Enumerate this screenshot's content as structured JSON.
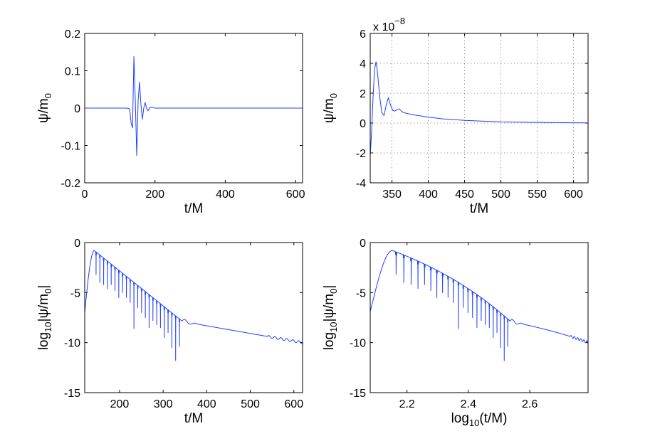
{
  "chart_data": [
    {
      "type": "line",
      "panel": "top-left",
      "x": [
        0,
        100,
        120,
        128,
        132,
        136,
        140,
        144,
        148,
        152,
        156,
        160,
        164,
        168,
        172,
        176,
        180,
        184,
        190,
        200,
        220,
        620
      ],
      "y": [
        0,
        0,
        0,
        -0.002,
        -0.04,
        -0.053,
        0.138,
        0.02,
        -0.127,
        0.02,
        0.07,
        0.01,
        -0.03,
        0.0,
        0.015,
        0.0,
        -0.007,
        0.0,
        0.003,
        0.0,
        0.0,
        0.0
      ],
      "xlim": [
        0,
        620
      ],
      "ylim": [
        -0.2,
        0.2
      ],
      "xticks": [
        "0",
        "200",
        "400",
        "600"
      ],
      "xtick_values": [
        0,
        200,
        400,
        600
      ],
      "yticks": [
        "0.2",
        "0.1",
        "0",
        "-0.1",
        "-0.2"
      ],
      "ytick_values": [
        0.2,
        0.1,
        0,
        -0.1,
        -0.2
      ],
      "xlabel": "t/M",
      "ylabel_main": "ψ/m",
      "ylabel_sub": "0",
      "grid": false
    },
    {
      "type": "line",
      "panel": "top-right",
      "x": [
        320,
        322,
        324,
        326,
        328,
        330,
        333,
        336,
        339,
        342,
        345,
        348,
        351,
        354,
        357,
        360,
        363,
        366,
        370,
        375,
        380,
        400,
        420,
        450,
        500,
        550,
        600,
        620
      ],
      "y": [
        -2.2,
        -0.5,
        1.8,
        3.6,
        4.1,
        3.4,
        1.8,
        0.7,
        0.5,
        1.2,
        1.7,
        1.2,
        0.85,
        0.8,
        0.9,
        0.95,
        0.8,
        0.7,
        0.65,
        0.6,
        0.55,
        0.4,
        0.28,
        0.18,
        0.08,
        0.04,
        0.02,
        0.01
      ],
      "xlim": [
        320,
        620
      ],
      "ylim": [
        -4,
        6
      ],
      "xticks": [
        "350",
        "400",
        "450",
        "500",
        "550",
        "600"
      ],
      "xtick_values": [
        350,
        400,
        450,
        500,
        550,
        600
      ],
      "yticks": [
        "6",
        "4",
        "2",
        "0",
        "-2",
        "-4"
      ],
      "ytick_values": [
        6,
        4,
        2,
        0,
        -2,
        -4
      ],
      "multiplier_base": "x 10",
      "multiplier_exp": "−8",
      "xlabel": "t/M",
      "ylabel_main": "ψ/m",
      "ylabel_sub": "0",
      "grid": true
    },
    {
      "type": "line",
      "panel": "bottom-left",
      "xlim": [
        120,
        620
      ],
      "ylim": [
        -15,
        0
      ],
      "envelope_ringdown": {
        "t_start": 120,
        "t_peak": 142,
        "t_end": 345,
        "peak_log": -0.8,
        "end_log": -7.9,
        "cycle": 8.7,
        "first_dip_t": 146
      },
      "dips": [
        -3.2,
        -4.0,
        -4.2,
        -4.6,
        -4.2,
        -4.8,
        -5.5,
        -5.0,
        -5.5,
        -6.0,
        -8.6,
        -6.5,
        -7.0,
        -7.5,
        -8.5,
        -7.8,
        -8.2,
        -8.5,
        -9.5,
        -9.0,
        -10.5,
        -11.8,
        -10.4
      ],
      "tail": {
        "t_start": 345,
        "t_end": 620,
        "log_start": -7.9,
        "log_end": -10.0
      },
      "xticks": [
        "200",
        "300",
        "400",
        "500",
        "600"
      ],
      "xtick_values": [
        200,
        300,
        400,
        500,
        600
      ],
      "yticks": [
        "0",
        "-5",
        "-10",
        "-15"
      ],
      "ytick_values": [
        0,
        -5,
        -10,
        -15
      ],
      "xlabel": "t/M",
      "ylabel_log": "log",
      "ylabel_logsub": "10",
      "ylabel_rest": "|ψ/m",
      "ylabel_sub": "0",
      "ylabel_end": "|",
      "grid": false
    },
    {
      "type": "line",
      "panel": "bottom-right",
      "xlim": [
        2.08,
        2.79
      ],
      "ylim": [
        -15,
        0
      ],
      "same_data_as": "bottom-left",
      "xticks": [
        "2.2",
        "2.4",
        "2.6"
      ],
      "xtick_values": [
        2.2,
        2.4,
        2.6
      ],
      "yticks": [
        "0",
        "-5",
        "-10",
        "-15"
      ],
      "ytick_values": [
        0,
        -5,
        -10,
        -15
      ],
      "xlabel_log": "log",
      "xlabel_logsub": "10",
      "xlabel_rest": "(t/M)",
      "ylabel_log": "log",
      "ylabel_logsub": "10",
      "ylabel_rest": "|ψ/m",
      "ylabel_sub": "0",
      "ylabel_end": "|",
      "grid": false
    }
  ],
  "colors": {
    "line": "#1f3fff",
    "axes": "#000000",
    "background": "#ffffff"
  }
}
